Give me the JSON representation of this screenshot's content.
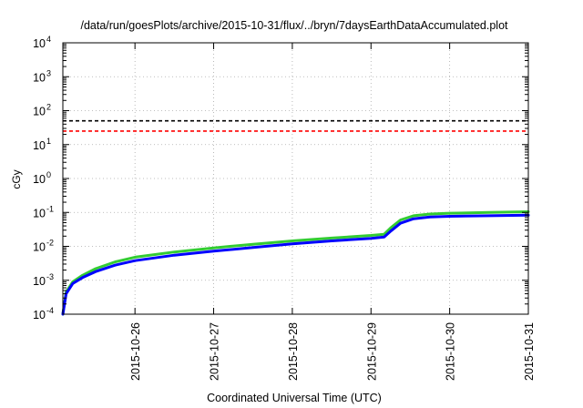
{
  "chart_data": {
    "type": "line",
    "title": "/data/run/goesPlots/archive/2015-10-31/flux/../bryn/7daysEarthDataAccumulated.plot",
    "xlabel": "Coordinated Universal Time (UTC)",
    "ylabel": "cGy",
    "yscale": "log",
    "ylim": [
      0.0001,
      10000
    ],
    "xlim": [
      "2015-10-25T02:00",
      "2015-10-31T00:00"
    ],
    "grid": true,
    "x_ticks": [
      "2015-10-26",
      "2015-10-27",
      "2015-10-28",
      "2015-10-29",
      "2015-10-30",
      "2015-10-31"
    ],
    "y_ticks": [
      {
        "base": "10",
        "exp": "-4",
        "value": 0.0001
      },
      {
        "base": "10",
        "exp": "-3",
        "value": 0.001
      },
      {
        "base": "10",
        "exp": "-2",
        "value": 0.01
      },
      {
        "base": "10",
        "exp": "-1",
        "value": 0.1
      },
      {
        "base": "10",
        "exp": "0",
        "value": 1
      },
      {
        "base": "10",
        "exp": "1",
        "value": 10
      },
      {
        "base": "10",
        "exp": "2",
        "value": 100
      },
      {
        "base": "10",
        "exp": "3",
        "value": 1000
      },
      {
        "base": "10",
        "exp": "4",
        "value": 10000
      }
    ],
    "reference_lines": [
      {
        "value": 50,
        "color": "#000000",
        "style": "dashed"
      },
      {
        "value": 25,
        "color": "#ff0000",
        "style": "dashed"
      }
    ],
    "series": [
      {
        "color": "#33cc33",
        "points": [
          [
            "2015-10-25T02:00",
            0.0001
          ],
          [
            "2015-10-25T03:00",
            0.00045
          ],
          [
            "2015-10-25T05:00",
            0.0009
          ],
          [
            "2015-10-25T08:00",
            0.0014
          ],
          [
            "2015-10-25T12:00",
            0.0022
          ],
          [
            "2015-10-25T18:00",
            0.0035
          ],
          [
            "2015-10-26T00:00",
            0.0048
          ],
          [
            "2015-10-26T12:00",
            0.0068
          ],
          [
            "2015-10-27T00:00",
            0.009
          ],
          [
            "2015-10-27T12:00",
            0.0115
          ],
          [
            "2015-10-28T00:00",
            0.0145
          ],
          [
            "2015-10-28T12:00",
            0.0175
          ],
          [
            "2015-10-29T00:00",
            0.021
          ],
          [
            "2015-10-29T04:00",
            0.0228
          ],
          [
            "2015-10-29T06:00",
            0.035
          ],
          [
            "2015-10-29T09:00",
            0.06
          ],
          [
            "2015-10-29T13:00",
            0.08
          ],
          [
            "2015-10-29T18:00",
            0.09
          ],
          [
            "2015-10-30T00:00",
            0.095
          ],
          [
            "2015-10-30T12:00",
            0.1
          ],
          [
            "2015-10-31T00:00",
            0.105
          ]
        ]
      },
      {
        "color": "#0000ff",
        "points": [
          [
            "2015-10-25T02:00",
            0.0001
          ],
          [
            "2015-10-25T03:00",
            0.0004
          ],
          [
            "2015-10-25T05:00",
            0.0008
          ],
          [
            "2015-10-25T08:00",
            0.0012
          ],
          [
            "2015-10-25T12:00",
            0.0018
          ],
          [
            "2015-10-25T18:00",
            0.0028
          ],
          [
            "2015-10-26T00:00",
            0.0038
          ],
          [
            "2015-10-26T12:00",
            0.0055
          ],
          [
            "2015-10-27T00:00",
            0.0072
          ],
          [
            "2015-10-27T12:00",
            0.0092
          ],
          [
            "2015-10-28T00:00",
            0.0118
          ],
          [
            "2015-10-28T12:00",
            0.0145
          ],
          [
            "2015-10-29T00:00",
            0.0172
          ],
          [
            "2015-10-29T04:00",
            0.0188
          ],
          [
            "2015-10-29T06:00",
            0.028
          ],
          [
            "2015-10-29T09:00",
            0.048
          ],
          [
            "2015-10-29T13:00",
            0.065
          ],
          [
            "2015-10-29T18:00",
            0.073
          ],
          [
            "2015-10-30T00:00",
            0.077
          ],
          [
            "2015-10-30T12:00",
            0.08
          ],
          [
            "2015-10-31T00:00",
            0.083
          ]
        ]
      }
    ]
  }
}
